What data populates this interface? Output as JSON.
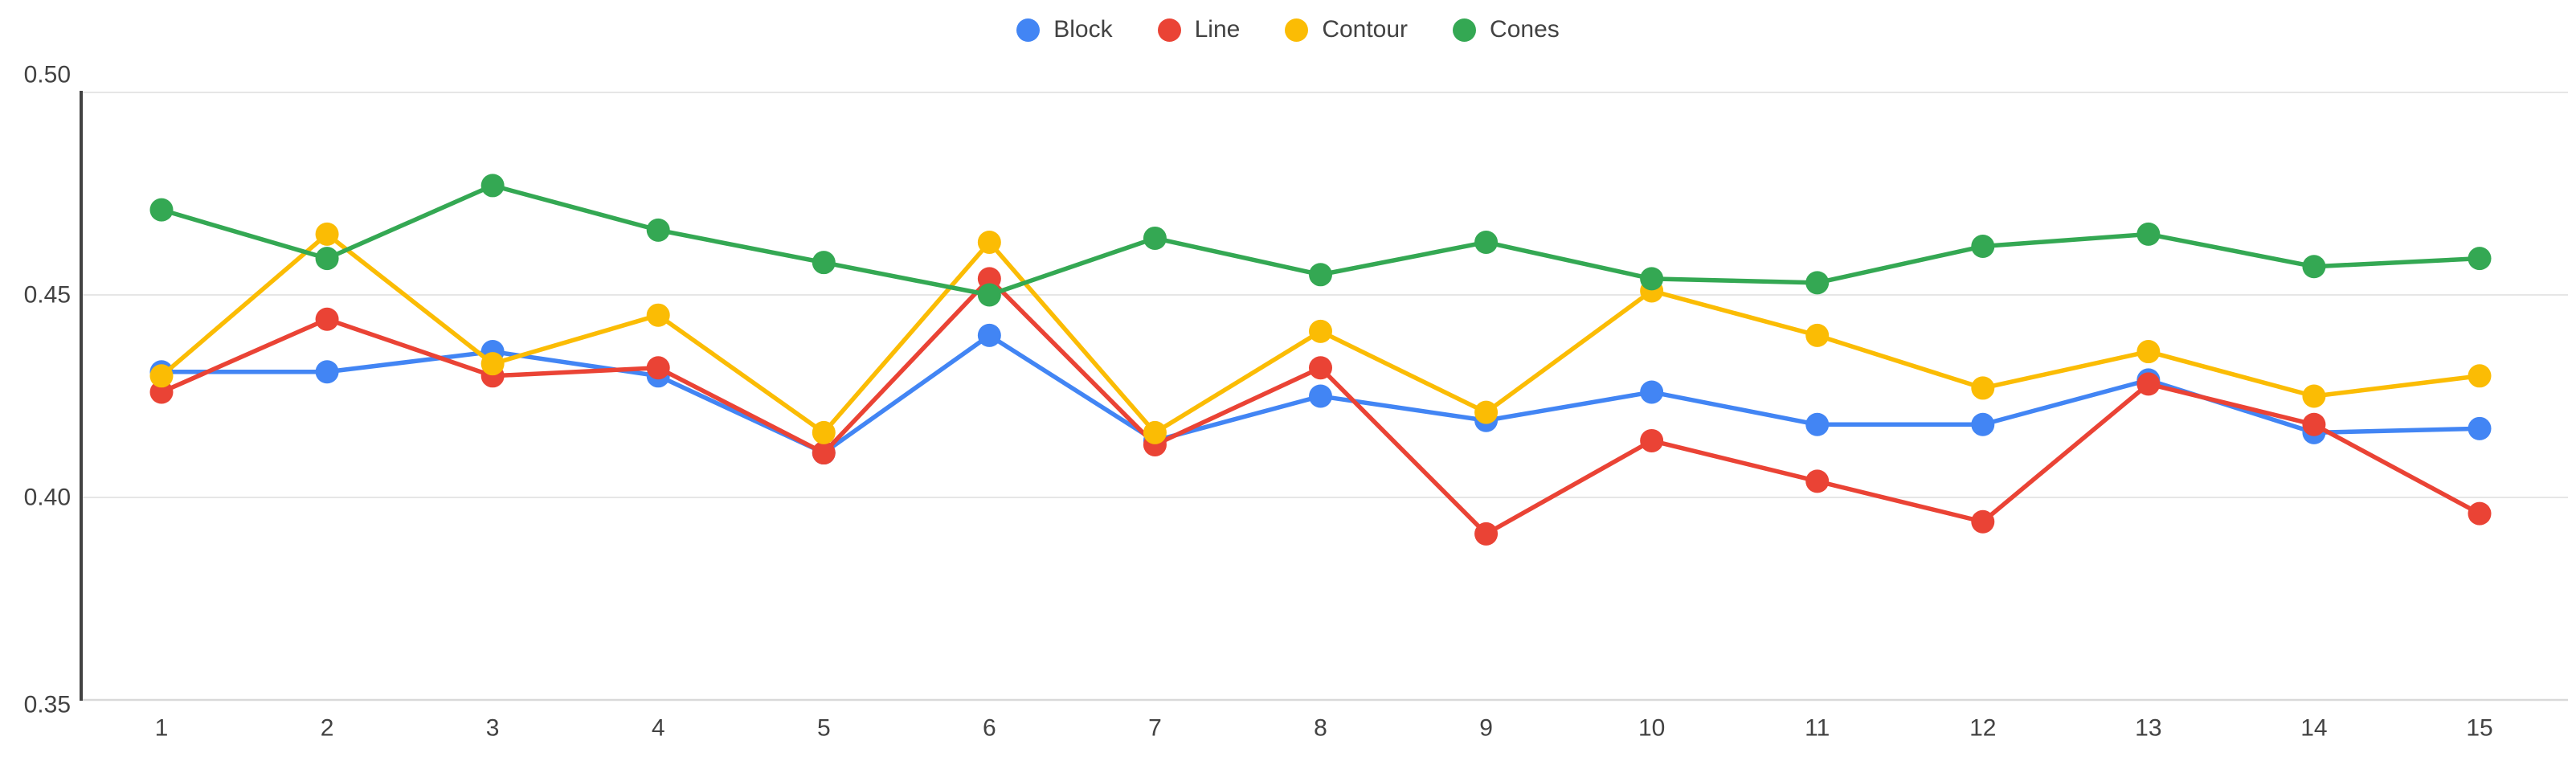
{
  "chart_data": {
    "type": "line",
    "title": "",
    "xlabel": "",
    "ylabel": "",
    "x": [
      1,
      2,
      3,
      4,
      5,
      6,
      7,
      8,
      9,
      10,
      11,
      12,
      13,
      14,
      15
    ],
    "xtick_labels": [
      "1",
      "2",
      "3",
      "4",
      "5",
      "6",
      "7",
      "8",
      "9",
      "10",
      "11",
      "12",
      "13",
      "14",
      "15"
    ],
    "ylim": [
      0.35,
      0.5
    ],
    "yticks": [
      0.5,
      0.45,
      0.4,
      0.35
    ],
    "ytick_labels": [
      "0.50",
      "0.45",
      "0.40",
      "0.35"
    ],
    "grid": true,
    "legend_position": "top-center",
    "series": [
      {
        "name": "Block",
        "color": "#4285f4",
        "values": [
          0.431,
          0.431,
          0.436,
          0.43,
          0.411,
          0.44,
          0.414,
          0.425,
          0.419,
          0.426,
          0.418,
          0.418,
          0.429,
          0.416,
          0.417
        ]
      },
      {
        "name": "Line",
        "color": "#ea4335",
        "values": [
          0.426,
          0.444,
          0.43,
          0.432,
          0.411,
          0.454,
          0.413,
          0.432,
          0.391,
          0.414,
          0.404,
          0.394,
          0.428,
          0.418,
          0.396
        ]
      },
      {
        "name": "Contour",
        "color": "#fbbc04",
        "values": [
          0.43,
          0.465,
          0.433,
          0.445,
          0.416,
          0.463,
          0.416,
          0.441,
          0.421,
          0.451,
          0.44,
          0.427,
          0.436,
          0.425,
          0.43
        ]
      },
      {
        "name": "Cones",
        "color": "#34a853",
        "values": [
          0.471,
          0.459,
          0.477,
          0.466,
          0.458,
          0.45,
          0.464,
          0.455,
          0.463,
          0.454,
          0.453,
          0.462,
          0.465,
          0.457,
          0.459
        ]
      }
    ],
    "style": {
      "gridline_color": "#e6e6e6",
      "baseline_color": "#d9d9d9",
      "yaxis_line_color": "#424242",
      "tick_label_color": "#424242",
      "background_color": "#ffffff"
    }
  }
}
